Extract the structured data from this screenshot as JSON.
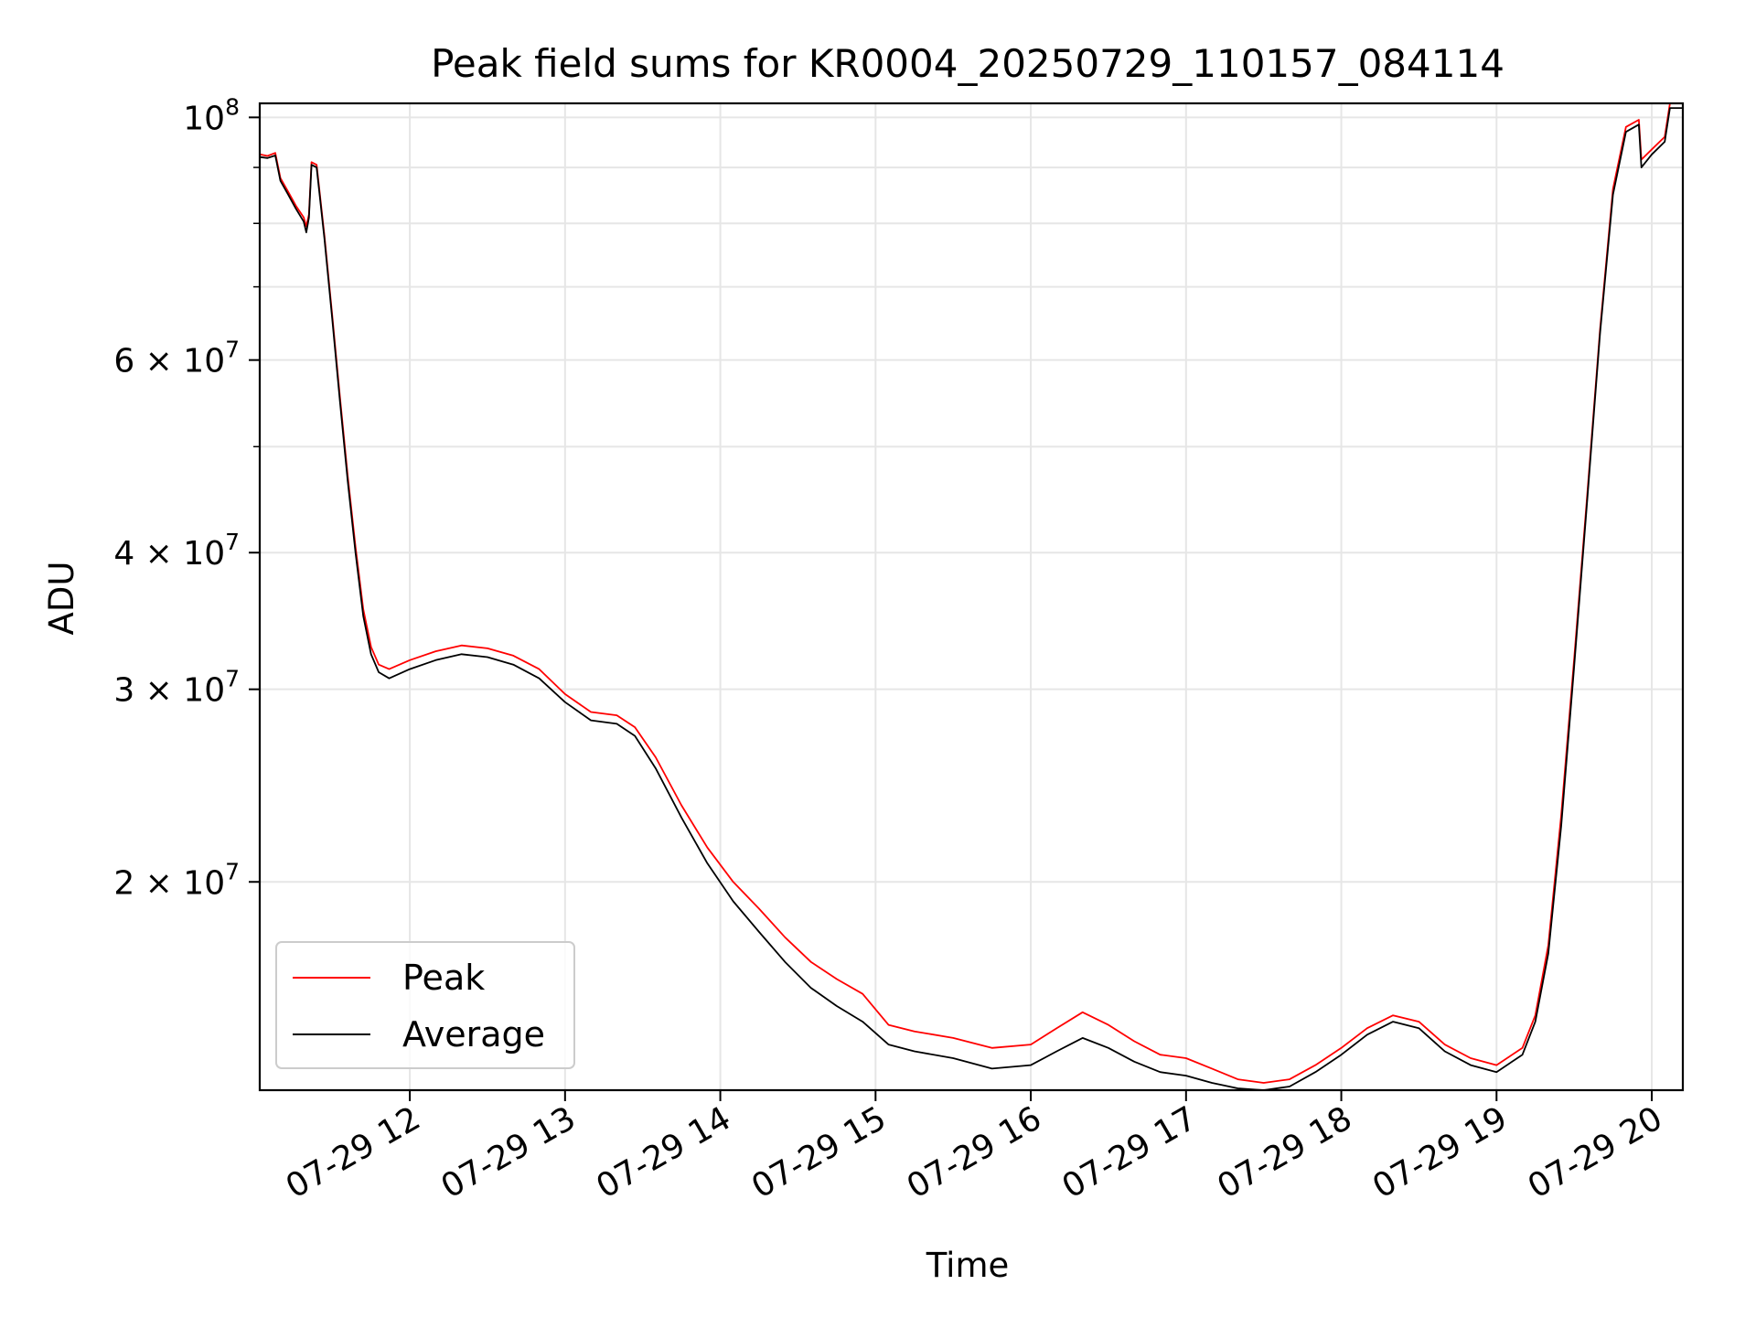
{
  "chart_data": {
    "type": "line",
    "title": "Peak field sums for KR0004_20250729_110157_084114",
    "xlabel": "Time",
    "ylabel": "ADU",
    "yscale": "log",
    "grid": true,
    "legend_placement": "lower-left",
    "x_range": [
      "2025-07-29 11:02",
      "2025-07-29 20:12"
    ],
    "ylim": [
      12900000,
      103000000
    ],
    "x_ticks": [
      {
        "time": "2025-07-29 12:00",
        "label": "07-29 12"
      },
      {
        "time": "2025-07-29 13:00",
        "label": "07-29 13"
      },
      {
        "time": "2025-07-29 14:00",
        "label": "07-29 14"
      },
      {
        "time": "2025-07-29 15:00",
        "label": "07-29 15"
      },
      {
        "time": "2025-07-29 16:00",
        "label": "07-29 16"
      },
      {
        "time": "2025-07-29 17:00",
        "label": "07-29 17"
      },
      {
        "time": "2025-07-29 18:00",
        "label": "07-29 18"
      },
      {
        "time": "2025-07-29 19:00",
        "label": "07-29 19"
      },
      {
        "time": "2025-07-29 20:00",
        "label": "07-29 20"
      }
    ],
    "y_ticks": [
      {
        "value": 100000000,
        "base": "10",
        "exp": "8"
      },
      {
        "value": 60000000,
        "base": "6 × 10",
        "exp": "7"
      },
      {
        "value": 40000000,
        "base": "4 × 10",
        "exp": "7"
      },
      {
        "value": 30000000,
        "base": "3 × 10",
        "exp": "7"
      },
      {
        "value": 20000000,
        "base": "2 × 10",
        "exp": "7"
      }
    ],
    "y_minor_ticks": [
      90000000,
      80000000,
      70000000,
      50000000
    ],
    "series": [
      {
        "name": "Peak",
        "color": "#ff0000",
        "points": [
          [
            "2025-07-29 11:02",
            92500000
          ],
          [
            "2025-07-29 11:05",
            92200000
          ],
          [
            "2025-07-29 11:08",
            92800000
          ],
          [
            "2025-07-29 11:10",
            88000000
          ],
          [
            "2025-07-29 11:13",
            85500000
          ],
          [
            "2025-07-29 11:16",
            83000000
          ],
          [
            "2025-07-29 11:19",
            81000000
          ],
          [
            "2025-07-29 11:20",
            79500000
          ],
          [
            "2025-07-29 11:21",
            81500000
          ],
          [
            "2025-07-29 11:22",
            91000000
          ],
          [
            "2025-07-29 11:24",
            90500000
          ],
          [
            "2025-07-29 11:27",
            78000000
          ],
          [
            "2025-07-29 11:30",
            66000000
          ],
          [
            "2025-07-29 11:33",
            55500000
          ],
          [
            "2025-07-29 11:36",
            47000000
          ],
          [
            "2025-07-29 11:39",
            40500000
          ],
          [
            "2025-07-29 11:42",
            35500000
          ],
          [
            "2025-07-29 11:45",
            32800000
          ],
          [
            "2025-07-29 11:48",
            31600000
          ],
          [
            "2025-07-29 11:52",
            31300000
          ],
          [
            "2025-07-29 12:00",
            31900000
          ],
          [
            "2025-07-29 12:10",
            32500000
          ],
          [
            "2025-07-29 12:20",
            32900000
          ],
          [
            "2025-07-29 12:30",
            32700000
          ],
          [
            "2025-07-29 12:40",
            32200000
          ],
          [
            "2025-07-29 12:50",
            31300000
          ],
          [
            "2025-07-29 13:00",
            29700000
          ],
          [
            "2025-07-29 13:10",
            28600000
          ],
          [
            "2025-07-29 13:20",
            28400000
          ],
          [
            "2025-07-29 13:27",
            27700000
          ],
          [
            "2025-07-29 13:35",
            26000000
          ],
          [
            "2025-07-29 13:45",
            23500000
          ],
          [
            "2025-07-29 13:55",
            21500000
          ],
          [
            "2025-07-29 14:05",
            20000000
          ],
          [
            "2025-07-29 14:15",
            18900000
          ],
          [
            "2025-07-29 14:25",
            17800000
          ],
          [
            "2025-07-29 14:35",
            16900000
          ],
          [
            "2025-07-29 14:45",
            16300000
          ],
          [
            "2025-07-29 14:55",
            15800000
          ],
          [
            "2025-07-29 15:05",
            14800000
          ],
          [
            "2025-07-29 15:15",
            14600000
          ],
          [
            "2025-07-29 15:30",
            14400000
          ],
          [
            "2025-07-29 15:45",
            14100000
          ],
          [
            "2025-07-29 16:00",
            14200000
          ],
          [
            "2025-07-29 16:10",
            14700000
          ],
          [
            "2025-07-29 16:20",
            15200000
          ],
          [
            "2025-07-29 16:30",
            14800000
          ],
          [
            "2025-07-29 16:40",
            14300000
          ],
          [
            "2025-07-29 16:50",
            13900000
          ],
          [
            "2025-07-29 17:00",
            13800000
          ],
          [
            "2025-07-29 17:10",
            13500000
          ],
          [
            "2025-07-29 17:20",
            13200000
          ],
          [
            "2025-07-29 17:30",
            13100000
          ],
          [
            "2025-07-29 17:40",
            13200000
          ],
          [
            "2025-07-29 17:50",
            13600000
          ],
          [
            "2025-07-29 18:00",
            14100000
          ],
          [
            "2025-07-29 18:10",
            14700000
          ],
          [
            "2025-07-29 18:20",
            15100000
          ],
          [
            "2025-07-29 18:30",
            14900000
          ],
          [
            "2025-07-29 18:40",
            14200000
          ],
          [
            "2025-07-29 18:50",
            13800000
          ],
          [
            "2025-07-29 19:00",
            13600000
          ],
          [
            "2025-07-29 19:10",
            14100000
          ],
          [
            "2025-07-29 19:15",
            15100000
          ],
          [
            "2025-07-29 19:20",
            17500000
          ],
          [
            "2025-07-29 19:25",
            23000000
          ],
          [
            "2025-07-29 19:30",
            32000000
          ],
          [
            "2025-07-29 19:35",
            45000000
          ],
          [
            "2025-07-29 19:40",
            64000000
          ],
          [
            "2025-07-29 19:45",
            86000000
          ],
          [
            "2025-07-29 19:50",
            98000000
          ],
          [
            "2025-07-29 19:55",
            99500000
          ],
          [
            "2025-07-29 19:56",
            91500000
          ],
          [
            "2025-07-29 20:00",
            93500000
          ],
          [
            "2025-07-29 20:05",
            96000000
          ],
          [
            "2025-07-29 20:07",
            103000000
          ],
          [
            "2025-07-29 20:12",
            103000000
          ]
        ]
      },
      {
        "name": "Average",
        "color": "#000000",
        "points": [
          [
            "2025-07-29 11:02",
            92000000
          ],
          [
            "2025-07-29 11:05",
            91800000
          ],
          [
            "2025-07-29 11:08",
            92300000
          ],
          [
            "2025-07-29 11:10",
            87500000
          ],
          [
            "2025-07-29 11:13",
            85000000
          ],
          [
            "2025-07-29 11:16",
            82500000
          ],
          [
            "2025-07-29 11:19",
            80300000
          ],
          [
            "2025-07-29 11:20",
            78500000
          ],
          [
            "2025-07-29 11:21",
            81000000
          ],
          [
            "2025-07-29 11:22",
            90500000
          ],
          [
            "2025-07-29 11:24",
            90000000
          ],
          [
            "2025-07-29 11:27",
            77500000
          ],
          [
            "2025-07-29 11:30",
            65500000
          ],
          [
            "2025-07-29 11:33",
            55000000
          ],
          [
            "2025-07-29 11:36",
            46500000
          ],
          [
            "2025-07-29 11:39",
            40000000
          ],
          [
            "2025-07-29 11:42",
            35000000
          ],
          [
            "2025-07-29 11:45",
            32300000
          ],
          [
            "2025-07-29 11:48",
            31100000
          ],
          [
            "2025-07-29 11:52",
            30700000
          ],
          [
            "2025-07-29 12:00",
            31300000
          ],
          [
            "2025-07-29 12:10",
            31900000
          ],
          [
            "2025-07-29 12:20",
            32300000
          ],
          [
            "2025-07-29 12:30",
            32100000
          ],
          [
            "2025-07-29 12:40",
            31600000
          ],
          [
            "2025-07-29 12:50",
            30700000
          ],
          [
            "2025-07-29 13:00",
            29200000
          ],
          [
            "2025-07-29 13:10",
            28100000
          ],
          [
            "2025-07-29 13:20",
            27900000
          ],
          [
            "2025-07-29 13:27",
            27200000
          ],
          [
            "2025-07-29 13:35",
            25400000
          ],
          [
            "2025-07-29 13:45",
            22900000
          ],
          [
            "2025-07-29 13:55",
            20800000
          ],
          [
            "2025-07-29 14:05",
            19200000
          ],
          [
            "2025-07-29 14:15",
            18000000
          ],
          [
            "2025-07-29 14:25",
            16900000
          ],
          [
            "2025-07-29 14:35",
            16000000
          ],
          [
            "2025-07-29 14:45",
            15400000
          ],
          [
            "2025-07-29 14:55",
            14900000
          ],
          [
            "2025-07-29 15:05",
            14200000
          ],
          [
            "2025-07-29 15:15",
            14000000
          ],
          [
            "2025-07-29 15:30",
            13800000
          ],
          [
            "2025-07-29 15:45",
            13500000
          ],
          [
            "2025-07-29 16:00",
            13600000
          ],
          [
            "2025-07-29 16:10",
            14000000
          ],
          [
            "2025-07-29 16:20",
            14400000
          ],
          [
            "2025-07-29 16:30",
            14100000
          ],
          [
            "2025-07-29 16:40",
            13700000
          ],
          [
            "2025-07-29 16:50",
            13400000
          ],
          [
            "2025-07-29 17:00",
            13300000
          ],
          [
            "2025-07-29 17:10",
            13100000
          ],
          [
            "2025-07-29 17:20",
            12950000
          ],
          [
            "2025-07-29 17:30",
            12900000
          ],
          [
            "2025-07-29 17:40",
            13000000
          ],
          [
            "2025-07-29 17:50",
            13400000
          ],
          [
            "2025-07-29 18:00",
            13900000
          ],
          [
            "2025-07-29 18:10",
            14500000
          ],
          [
            "2025-07-29 18:20",
            14900000
          ],
          [
            "2025-07-29 18:30",
            14700000
          ],
          [
            "2025-07-29 18:40",
            14000000
          ],
          [
            "2025-07-29 18:50",
            13600000
          ],
          [
            "2025-07-29 19:00",
            13400000
          ],
          [
            "2025-07-29 19:10",
            13900000
          ],
          [
            "2025-07-29 19:15",
            14900000
          ],
          [
            "2025-07-29 19:20",
            17200000
          ],
          [
            "2025-07-29 19:25",
            22500000
          ],
          [
            "2025-07-29 19:30",
            31500000
          ],
          [
            "2025-07-29 19:35",
            44500000
          ],
          [
            "2025-07-29 19:40",
            63500000
          ],
          [
            "2025-07-29 19:45",
            85000000
          ],
          [
            "2025-07-29 19:50",
            97000000
          ],
          [
            "2025-07-29 19:55",
            98500000
          ],
          [
            "2025-07-29 19:56",
            90000000
          ],
          [
            "2025-07-29 20:00",
            92500000
          ],
          [
            "2025-07-29 20:05",
            95000000
          ],
          [
            "2025-07-29 20:07",
            102000000
          ],
          [
            "2025-07-29 20:12",
            102000000
          ]
        ]
      }
    ]
  }
}
